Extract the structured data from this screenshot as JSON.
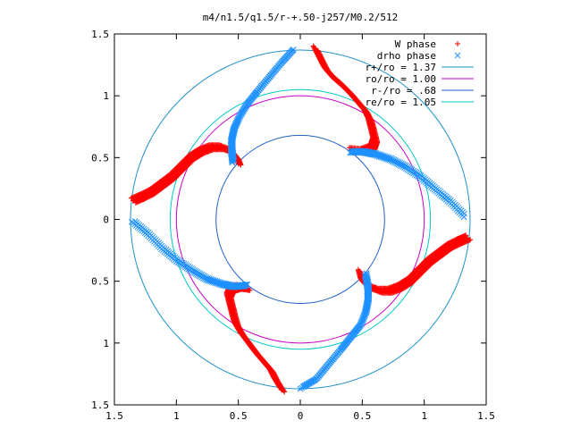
{
  "chart_data": {
    "type": "scatter",
    "title": "m4/n1.5/q1.5/r-+.50-j257/M0.2/512",
    "xlim": [
      -1.5,
      1.5
    ],
    "ylim": [
      -1.5,
      1.5
    ],
    "grid": false,
    "legend_position": "top-right",
    "xticks": [
      {
        "value": -1.5,
        "label": "1.5"
      },
      {
        "value": -1.0,
        "label": "1"
      },
      {
        "value": -0.5,
        "label": "0.5"
      },
      {
        "value": 0.0,
        "label": "0"
      },
      {
        "value": 0.5,
        "label": "0.5"
      },
      {
        "value": 1.0,
        "label": "1"
      },
      {
        "value": 1.5,
        "label": "1.5"
      }
    ],
    "yticks": [
      {
        "value": 1.5,
        "label": "1.5"
      },
      {
        "value": 1.0,
        "label": "1"
      },
      {
        "value": 0.5,
        "label": "0.5"
      },
      {
        "value": 0.0,
        "label": "0"
      },
      {
        "value": -0.5,
        "label": "0.5"
      },
      {
        "value": -1.0,
        "label": "1"
      },
      {
        "value": -1.5,
        "label": "1.5"
      }
    ],
    "circles": [
      {
        "name": "r+/ro = 1.37",
        "r": 1.37,
        "color": "#1e90c8"
      },
      {
        "name": "ro/ro = 1.00",
        "r": 1.0,
        "color": "#c800c8"
      },
      {
        "name": "r-/ro = .68",
        "r": 0.68,
        "color": "#1e5fc8"
      },
      {
        "name": "re/ro = 1.05",
        "r": 1.05,
        "color": "#00c8c8"
      }
    ],
    "series": [
      {
        "name": "W phase",
        "marker": "plus",
        "color": "#ff0000",
        "arms": [
          {
            "points": [
              [
                0.12,
                1.38
              ],
              [
                0.16,
                1.3
              ],
              [
                0.2,
                1.22
              ],
              [
                0.26,
                1.15
              ],
              [
                0.34,
                1.08
              ],
              [
                0.4,
                1.02
              ],
              [
                0.46,
                0.95
              ],
              [
                0.52,
                0.88
              ],
              [
                0.56,
                0.8
              ],
              [
                0.58,
                0.72
              ],
              [
                0.6,
                0.64
              ],
              [
                0.58,
                0.58
              ],
              [
                0.5,
                0.55
              ],
              [
                0.4,
                0.56
              ]
            ]
          },
          {
            "points": [
              [
                1.35,
                -0.15
              ],
              [
                1.28,
                -0.18
              ],
              [
                1.2,
                -0.22
              ],
              [
                1.12,
                -0.28
              ],
              [
                1.04,
                -0.34
              ],
              [
                0.96,
                -0.42
              ],
              [
                0.88,
                -0.5
              ],
              [
                0.8,
                -0.55
              ],
              [
                0.72,
                -0.58
              ],
              [
                0.64,
                -0.58
              ],
              [
                0.56,
                -0.55
              ],
              [
                0.5,
                -0.5
              ],
              [
                0.48,
                -0.42
              ]
            ]
          },
          {
            "points": [
              [
                -0.15,
                -1.38
              ],
              [
                -0.2,
                -1.3
              ],
              [
                -0.24,
                -1.22
              ],
              [
                -0.3,
                -1.15
              ],
              [
                -0.36,
                -1.08
              ],
              [
                -0.42,
                -1.0
              ],
              [
                -0.48,
                -0.92
              ],
              [
                -0.52,
                -0.85
              ],
              [
                -0.54,
                -0.78
              ],
              [
                -0.56,
                -0.7
              ],
              [
                -0.58,
                -0.62
              ],
              [
                -0.56,
                -0.57
              ],
              [
                -0.5,
                -0.55
              ],
              [
                -0.42,
                -0.56
              ]
            ]
          },
          {
            "points": [
              [
                -1.35,
                0.15
              ],
              [
                -1.28,
                0.18
              ],
              [
                -1.2,
                0.22
              ],
              [
                -1.12,
                0.28
              ],
              [
                -1.04,
                0.34
              ],
              [
                -0.96,
                0.42
              ],
              [
                -0.88,
                0.5
              ],
              [
                -0.8,
                0.55
              ],
              [
                -0.72,
                0.58
              ],
              [
                -0.64,
                0.58
              ],
              [
                -0.56,
                0.55
              ],
              [
                -0.52,
                0.5
              ],
              [
                -0.5,
                0.45
              ]
            ]
          }
        ]
      },
      {
        "name": "drho phase",
        "marker": "cross",
        "color": "#1e90ff",
        "arms": [
          {
            "points": [
              [
                -0.55,
                0.46
              ],
              [
                -0.56,
                0.55
              ],
              [
                -0.56,
                0.64
              ],
              [
                -0.54,
                0.73
              ],
              [
                -0.5,
                0.82
              ],
              [
                -0.44,
                0.92
              ],
              [
                -0.36,
                1.02
              ],
              [
                -0.26,
                1.14
              ],
              [
                -0.16,
                1.26
              ],
              [
                -0.06,
                1.37
              ]
            ]
          },
          {
            "points": [
              [
                0.4,
                0.54
              ],
              [
                0.5,
                0.54
              ],
              [
                0.6,
                0.52
              ],
              [
                0.72,
                0.48
              ],
              [
                0.84,
                0.42
              ],
              [
                0.96,
                0.34
              ],
              [
                1.08,
                0.24
              ],
              [
                1.2,
                0.14
              ],
              [
                1.32,
                0.02
              ]
            ]
          },
          {
            "points": [
              [
                0.52,
                -0.45
              ],
              [
                0.54,
                -0.56
              ],
              [
                0.54,
                -0.66
              ],
              [
                0.52,
                -0.76
              ],
              [
                0.48,
                -0.86
              ],
              [
                0.4,
                -0.96
              ],
              [
                0.32,
                -1.06
              ],
              [
                0.22,
                -1.18
              ],
              [
                0.12,
                -1.3
              ],
              [
                0.0,
                -1.37
              ]
            ]
          },
          {
            "points": [
              [
                -0.44,
                -0.54
              ],
              [
                -0.54,
                -0.55
              ],
              [
                -0.64,
                -0.53
              ],
              [
                -0.76,
                -0.49
              ],
              [
                -0.88,
                -0.42
              ],
              [
                -1.0,
                -0.34
              ],
              [
                -1.12,
                -0.24
              ],
              [
                -1.24,
                -0.12
              ],
              [
                -1.36,
                -0.02
              ]
            ]
          }
        ]
      }
    ]
  }
}
